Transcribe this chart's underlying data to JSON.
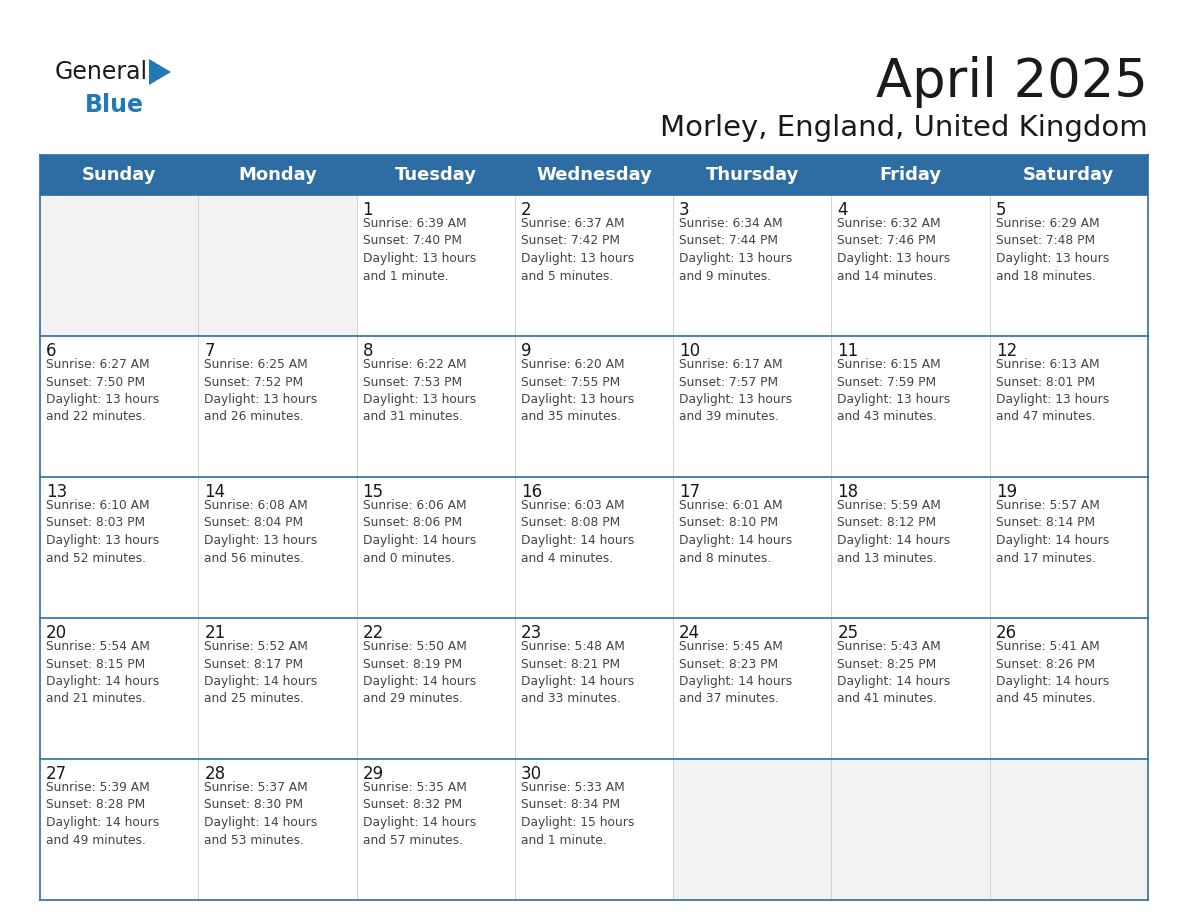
{
  "title": "April 2025",
  "subtitle": "Morley, England, United Kingdom",
  "header_bg": "#2e6da4",
  "header_text": "#ffffff",
  "cell_bg": "#ffffff",
  "cell_bg_empty": "#f2f2f2",
  "border_color": "#2e6da4",
  "row_border_color": "#2e6da4",
  "col_border_color": "#cccccc",
  "day_names": [
    "Sunday",
    "Monday",
    "Tuesday",
    "Wednesday",
    "Thursday",
    "Friday",
    "Saturday"
  ],
  "weeks": [
    [
      {
        "day": "",
        "text": ""
      },
      {
        "day": "",
        "text": ""
      },
      {
        "day": "1",
        "text": "Sunrise: 6:39 AM\nSunset: 7:40 PM\nDaylight: 13 hours\nand 1 minute."
      },
      {
        "day": "2",
        "text": "Sunrise: 6:37 AM\nSunset: 7:42 PM\nDaylight: 13 hours\nand 5 minutes."
      },
      {
        "day": "3",
        "text": "Sunrise: 6:34 AM\nSunset: 7:44 PM\nDaylight: 13 hours\nand 9 minutes."
      },
      {
        "day": "4",
        "text": "Sunrise: 6:32 AM\nSunset: 7:46 PM\nDaylight: 13 hours\nand 14 minutes."
      },
      {
        "day": "5",
        "text": "Sunrise: 6:29 AM\nSunset: 7:48 PM\nDaylight: 13 hours\nand 18 minutes."
      }
    ],
    [
      {
        "day": "6",
        "text": "Sunrise: 6:27 AM\nSunset: 7:50 PM\nDaylight: 13 hours\nand 22 minutes."
      },
      {
        "day": "7",
        "text": "Sunrise: 6:25 AM\nSunset: 7:52 PM\nDaylight: 13 hours\nand 26 minutes."
      },
      {
        "day": "8",
        "text": "Sunrise: 6:22 AM\nSunset: 7:53 PM\nDaylight: 13 hours\nand 31 minutes."
      },
      {
        "day": "9",
        "text": "Sunrise: 6:20 AM\nSunset: 7:55 PM\nDaylight: 13 hours\nand 35 minutes."
      },
      {
        "day": "10",
        "text": "Sunrise: 6:17 AM\nSunset: 7:57 PM\nDaylight: 13 hours\nand 39 minutes."
      },
      {
        "day": "11",
        "text": "Sunrise: 6:15 AM\nSunset: 7:59 PM\nDaylight: 13 hours\nand 43 minutes."
      },
      {
        "day": "12",
        "text": "Sunrise: 6:13 AM\nSunset: 8:01 PM\nDaylight: 13 hours\nand 47 minutes."
      }
    ],
    [
      {
        "day": "13",
        "text": "Sunrise: 6:10 AM\nSunset: 8:03 PM\nDaylight: 13 hours\nand 52 minutes."
      },
      {
        "day": "14",
        "text": "Sunrise: 6:08 AM\nSunset: 8:04 PM\nDaylight: 13 hours\nand 56 minutes."
      },
      {
        "day": "15",
        "text": "Sunrise: 6:06 AM\nSunset: 8:06 PM\nDaylight: 14 hours\nand 0 minutes."
      },
      {
        "day": "16",
        "text": "Sunrise: 6:03 AM\nSunset: 8:08 PM\nDaylight: 14 hours\nand 4 minutes."
      },
      {
        "day": "17",
        "text": "Sunrise: 6:01 AM\nSunset: 8:10 PM\nDaylight: 14 hours\nand 8 minutes."
      },
      {
        "day": "18",
        "text": "Sunrise: 5:59 AM\nSunset: 8:12 PM\nDaylight: 14 hours\nand 13 minutes."
      },
      {
        "day": "19",
        "text": "Sunrise: 5:57 AM\nSunset: 8:14 PM\nDaylight: 14 hours\nand 17 minutes."
      }
    ],
    [
      {
        "day": "20",
        "text": "Sunrise: 5:54 AM\nSunset: 8:15 PM\nDaylight: 14 hours\nand 21 minutes."
      },
      {
        "day": "21",
        "text": "Sunrise: 5:52 AM\nSunset: 8:17 PM\nDaylight: 14 hours\nand 25 minutes."
      },
      {
        "day": "22",
        "text": "Sunrise: 5:50 AM\nSunset: 8:19 PM\nDaylight: 14 hours\nand 29 minutes."
      },
      {
        "day": "23",
        "text": "Sunrise: 5:48 AM\nSunset: 8:21 PM\nDaylight: 14 hours\nand 33 minutes."
      },
      {
        "day": "24",
        "text": "Sunrise: 5:45 AM\nSunset: 8:23 PM\nDaylight: 14 hours\nand 37 minutes."
      },
      {
        "day": "25",
        "text": "Sunrise: 5:43 AM\nSunset: 8:25 PM\nDaylight: 14 hours\nand 41 minutes."
      },
      {
        "day": "26",
        "text": "Sunrise: 5:41 AM\nSunset: 8:26 PM\nDaylight: 14 hours\nand 45 minutes."
      }
    ],
    [
      {
        "day": "27",
        "text": "Sunrise: 5:39 AM\nSunset: 8:28 PM\nDaylight: 14 hours\nand 49 minutes."
      },
      {
        "day": "28",
        "text": "Sunrise: 5:37 AM\nSunset: 8:30 PM\nDaylight: 14 hours\nand 53 minutes."
      },
      {
        "day": "29",
        "text": "Sunrise: 5:35 AM\nSunset: 8:32 PM\nDaylight: 14 hours\nand 57 minutes."
      },
      {
        "day": "30",
        "text": "Sunrise: 5:33 AM\nSunset: 8:34 PM\nDaylight: 15 hours\nand 1 minute."
      },
      {
        "day": "",
        "text": ""
      },
      {
        "day": "",
        "text": ""
      },
      {
        "day": "",
        "text": ""
      }
    ]
  ],
  "logo_color_general": "#1a1a1a",
  "logo_color_blue": "#2179b5",
  "title_color": "#1a1a1a",
  "subtitle_color": "#1a1a1a",
  "day_number_color": "#1a1a1a",
  "cell_text_color": "#444444",
  "title_fontsize": 38,
  "subtitle_fontsize": 21,
  "header_fontsize": 13,
  "day_num_fontsize": 12,
  "cell_text_fontsize": 8.8
}
